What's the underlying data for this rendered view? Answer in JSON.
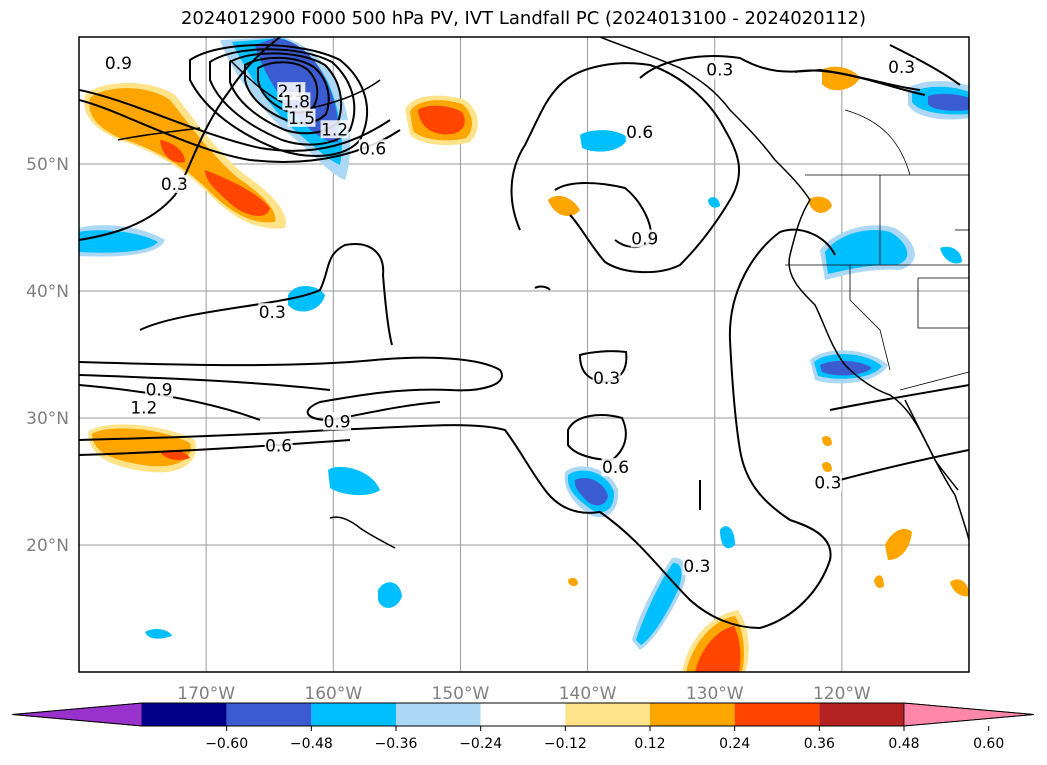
{
  "title": "2024012900 F000 500 hPa PV, IVT Landfall PC (2024013100 - 2024020112)",
  "map": {
    "lon_range": [
      -180,
      -110
    ],
    "lat_range": [
      10,
      60
    ],
    "lon_ticks": [
      {
        "value": -170,
        "label": "170°W"
      },
      {
        "value": -160,
        "label": "160°W"
      },
      {
        "value": -150,
        "label": "150°W"
      },
      {
        "value": -140,
        "label": "140°W"
      },
      {
        "value": -130,
        "label": "130°W"
      },
      {
        "value": -120,
        "label": "120°W"
      }
    ],
    "lat_ticks": [
      {
        "value": 20,
        "label": "20°N"
      },
      {
        "value": 30,
        "label": "30°N"
      },
      {
        "value": 40,
        "label": "40°N"
      },
      {
        "value": 50,
        "label": "50°N"
      }
    ],
    "grid": true,
    "contour_labels": [
      {
        "text": "0.9",
        "lon": -176.9,
        "lat": 57.7
      },
      {
        "text": "2.1",
        "lon": -163.3,
        "lat": 55.5
      },
      {
        "text": "1.8",
        "lon": -162.9,
        "lat": 54.7
      },
      {
        "text": "1.5",
        "lon": -162.5,
        "lat": 53.4
      },
      {
        "text": "1.2",
        "lon": -159.9,
        "lat": 52.5
      },
      {
        "text": "0.6",
        "lon": -156.9,
        "lat": 51.0
      },
      {
        "text": "0.3",
        "lon": -172.5,
        "lat": 48.2
      },
      {
        "text": "0.3",
        "lon": -129.6,
        "lat": 57.2
      },
      {
        "text": "0.3",
        "lon": -115.3,
        "lat": 57.4
      },
      {
        "text": "0.6",
        "lon": -135.9,
        "lat": 52.3
      },
      {
        "text": "0.9",
        "lon": -135.5,
        "lat": 43.9
      },
      {
        "text": "0.3",
        "lon": -164.8,
        "lat": 38.1
      },
      {
        "text": "0.9",
        "lon": -173.7,
        "lat": 32.0
      },
      {
        "text": "1.2",
        "lon": -174.9,
        "lat": 30.6
      },
      {
        "text": "0.9",
        "lon": -159.7,
        "lat": 29.5
      },
      {
        "text": "0.6",
        "lon": -164.3,
        "lat": 27.6
      },
      {
        "text": "0.3",
        "lon": -138.5,
        "lat": 32.9
      },
      {
        "text": "0.6",
        "lon": -137.8,
        "lat": 25.9
      },
      {
        "text": "0.3",
        "lon": -131.4,
        "lat": 18.1
      },
      {
        "text": "0.3",
        "lon": -121.1,
        "lat": 24.7
      }
    ]
  },
  "colorbar": {
    "ticks": [
      "−0.60",
      "−0.48",
      "−0.36",
      "−0.24",
      "−0.12",
      "0.12",
      "0.24",
      "0.36",
      "0.48",
      "0.60"
    ],
    "colors": [
      "#9932cc",
      "#00008b",
      "#3b5bd0",
      "#00bfff",
      "#add8f5",
      "#ffffff",
      "#ffe38a",
      "#ffa500",
      "#ff4500",
      "#b22222",
      "#ff88aa"
    ]
  }
}
